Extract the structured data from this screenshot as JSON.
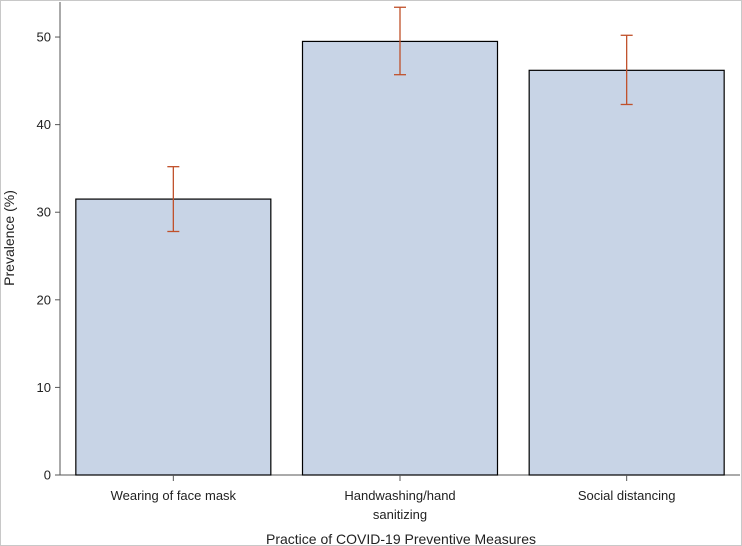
{
  "chart_data": {
    "type": "bar",
    "title": "",
    "xlabel": "Practice of COVID-19 Preventive Measures",
    "ylabel": "Prevalence (%)",
    "ylim": [
      0,
      54
    ],
    "yticks": [
      0,
      10,
      20,
      30,
      40,
      50
    ],
    "grid": false,
    "categories": [
      [
        "Wearing of face mask"
      ],
      [
        "Handwashing/hand",
        "sanitizing"
      ],
      [
        "Social distancing"
      ]
    ],
    "values": [
      31.5,
      49.5,
      46.2
    ],
    "error_low": [
      27.8,
      45.7,
      42.3
    ],
    "error_high": [
      35.2,
      53.4,
      50.2
    ],
    "colors": {
      "bar_fill": "#c8d4e6",
      "bar_stroke": "#000000",
      "error_bar": "#c0502a",
      "axis": "#555555"
    }
  }
}
